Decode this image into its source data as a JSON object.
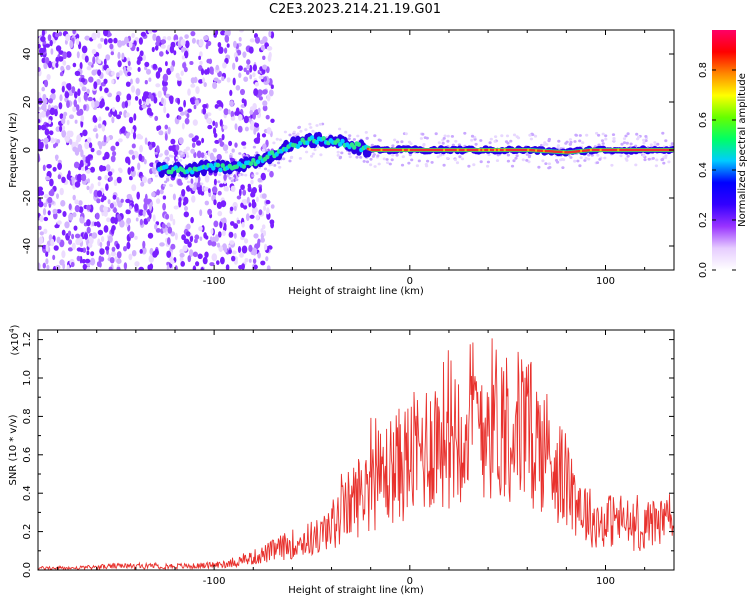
{
  "title": "C2E3.2023.214.21.19.G01",
  "chart_data": [
    {
      "type": "heatmap",
      "xlabel": "Height of straight line (km)",
      "ylabel": "Frequency (Hz)",
      "xlim": [
        -190,
        135
      ],
      "ylim": [
        -50,
        50
      ],
      "xticks": [
        -100,
        0,
        100
      ],
      "yticks": [
        -40,
        -20,
        0,
        20,
        40
      ],
      "colorbar": {
        "label": "Normalized spectral amplitude",
        "range": [
          0.0,
          0.96
        ],
        "ticks": [
          0.0,
          0.2,
          0.4,
          0.6,
          0.8
        ],
        "colors": [
          "#ffffff",
          "#e6ccff",
          "#9933ff",
          "#3300ff",
          "#0000ff",
          "#00ccff",
          "#00ff66",
          "#66ff00",
          "#ffff00",
          "#ff8800",
          "#ff0000",
          "#ff0066"
        ]
      },
      "ridge": {
        "x": [
          -125,
          -110,
          -95,
          -80,
          -70,
          -60,
          -50,
          -40,
          -30,
          -20,
          -10,
          0,
          20,
          40,
          60,
          80,
          92,
          135
        ],
        "frequency": [
          -8,
          -8,
          -7,
          -5,
          -2,
          2,
          4,
          4,
          2,
          0,
          0,
          0,
          0,
          0,
          0,
          -1,
          0,
          0
        ]
      }
    },
    {
      "type": "line",
      "xlabel": "Height of straight line (km)",
      "ylabel": "SNR (10 * v/v)",
      "y_scale_label": "(x10",
      "y_scale_exp": "4",
      "y_scale_close": ")",
      "xlim": [
        -190,
        135
      ],
      "ylim": [
        0.0,
        1.25
      ],
      "xticks": [
        -100,
        0,
        100
      ],
      "yticks": [
        "0.0",
        "0.2",
        "0.4",
        "0.6",
        "0.8",
        "1.0",
        "1.2"
      ],
      "series": [
        {
          "color": "#e8312d",
          "x": [
            -190,
            -170,
            -150,
            -130,
            -110,
            -95,
            -85,
            -75,
            -65,
            -55,
            -45,
            -38,
            -30,
            -25,
            -20,
            -15,
            -10,
            -5,
            0,
            5,
            10,
            15,
            20,
            25,
            30,
            35,
            40,
            45,
            50,
            55,
            60,
            65,
            70,
            75,
            80,
            85,
            90,
            95,
            100,
            105,
            110,
            115,
            120,
            125,
            130,
            135
          ],
          "values": [
            0.01,
            0.01,
            0.02,
            0.02,
            0.02,
            0.03,
            0.05,
            0.08,
            0.12,
            0.15,
            0.18,
            0.25,
            0.35,
            0.4,
            0.45,
            0.48,
            0.52,
            0.55,
            0.58,
            0.62,
            0.66,
            0.7,
            0.72,
            0.76,
            0.78,
            0.8,
            0.8,
            0.78,
            0.78,
            0.76,
            0.72,
            0.68,
            0.62,
            0.55,
            0.45,
            0.38,
            0.3,
            0.25,
            0.25,
            0.27,
            0.25,
            0.22,
            0.22,
            0.25,
            0.25,
            0.27
          ]
        }
      ]
    }
  ]
}
